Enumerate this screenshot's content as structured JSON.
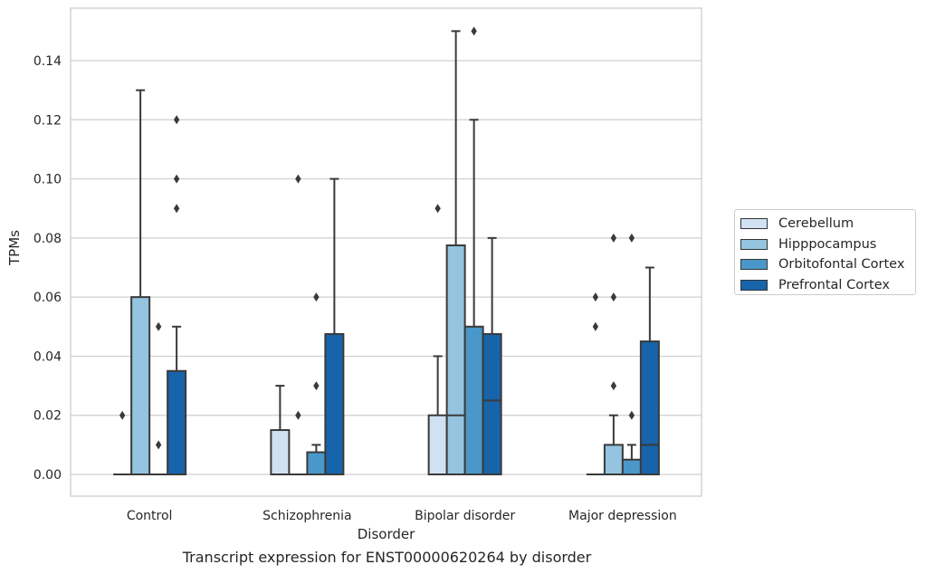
{
  "chart_data": {
    "type": "box",
    "title": "Transcript expression for ENST00000620264 by disorder",
    "xlabel": "Disorder",
    "ylabel": "TPMs",
    "ylim": [
      -0.0075,
      0.157
    ],
    "yticks": [
      0.0,
      0.02,
      0.04,
      0.06,
      0.08,
      0.1,
      0.12,
      0.14
    ],
    "ytick_labels": [
      "0.00",
      "0.02",
      "0.04",
      "0.06",
      "0.08",
      "0.10",
      "0.12",
      "0.14"
    ],
    "categories": [
      "Control",
      "Schizophrenia",
      "Bipolar disorder",
      "Major depression"
    ],
    "grid": "horizontal",
    "legend_position": "right",
    "series": [
      {
        "name": "Cerebellum",
        "color": "#d0e1f2",
        "boxes": [
          {
            "min": 0.0,
            "q1": 0.0,
            "median": 0.0,
            "q3": 0.0,
            "max": 0.0,
            "outliers": [
              0.02
            ]
          },
          {
            "min": 0.0,
            "q1": 0.0,
            "median": 0.0,
            "q3": 0.015,
            "max": 0.03,
            "outliers": []
          },
          {
            "min": 0.0,
            "q1": 0.0,
            "median": 0.0,
            "q3": 0.02,
            "max": 0.04,
            "outliers": [
              0.09
            ]
          },
          {
            "min": 0.0,
            "q1": 0.0,
            "median": 0.0,
            "q3": 0.0,
            "max": 0.0,
            "outliers": [
              0.05,
              0.06
            ]
          }
        ]
      },
      {
        "name": "Hipppocampus",
        "color": "#94c4df",
        "boxes": [
          {
            "min": 0.0,
            "q1": 0.0,
            "median": 0.0,
            "q3": 0.06,
            "max": 0.13,
            "outliers": []
          },
          {
            "min": 0.0,
            "q1": 0.0,
            "median": 0.0,
            "q3": 0.0,
            "max": 0.0,
            "outliers": [
              0.02,
              0.1
            ]
          },
          {
            "min": 0.0,
            "q1": 0.0,
            "median": 0.02,
            "q3": 0.0775,
            "max": 0.15,
            "outliers": []
          },
          {
            "min": 0.0,
            "q1": 0.0,
            "median": 0.0,
            "q3": 0.01,
            "max": 0.02,
            "outliers": [
              0.03,
              0.06,
              0.08
            ]
          }
        ]
      },
      {
        "name": "Orbitofontal Cortex",
        "color": "#4a98c9",
        "boxes": [
          {
            "min": 0.0,
            "q1": 0.0,
            "median": 0.0,
            "q3": 0.0,
            "max": 0.0,
            "outliers": [
              0.01,
              0.05
            ]
          },
          {
            "min": 0.0,
            "q1": 0.0,
            "median": 0.0,
            "q3": 0.0075,
            "max": 0.01,
            "outliers": [
              0.03,
              0.06
            ]
          },
          {
            "min": 0.0,
            "q1": 0.0,
            "median": 0.0,
            "q3": 0.05,
            "max": 0.12,
            "outliers": [
              0.15
            ]
          },
          {
            "min": 0.0,
            "q1": 0.0,
            "median": 0.0,
            "q3": 0.005,
            "max": 0.01,
            "outliers": [
              0.02,
              0.08
            ]
          }
        ]
      },
      {
        "name": "Prefrontal Cortex",
        "color": "#1764ab",
        "boxes": [
          {
            "min": 0.0,
            "q1": 0.0,
            "median": 0.0,
            "q3": 0.035,
            "max": 0.05,
            "outliers": [
              0.09,
              0.1,
              0.12
            ]
          },
          {
            "min": 0.0,
            "q1": 0.0,
            "median": 0.0,
            "q3": 0.0475,
            "max": 0.1,
            "outliers": []
          },
          {
            "min": 0.0,
            "q1": 0.0,
            "median": 0.025,
            "q3": 0.0475,
            "max": 0.08,
            "outliers": []
          },
          {
            "min": 0.0,
            "q1": 0.0,
            "median": 0.01,
            "q3": 0.045,
            "max": 0.07,
            "outliers": []
          }
        ]
      }
    ]
  }
}
